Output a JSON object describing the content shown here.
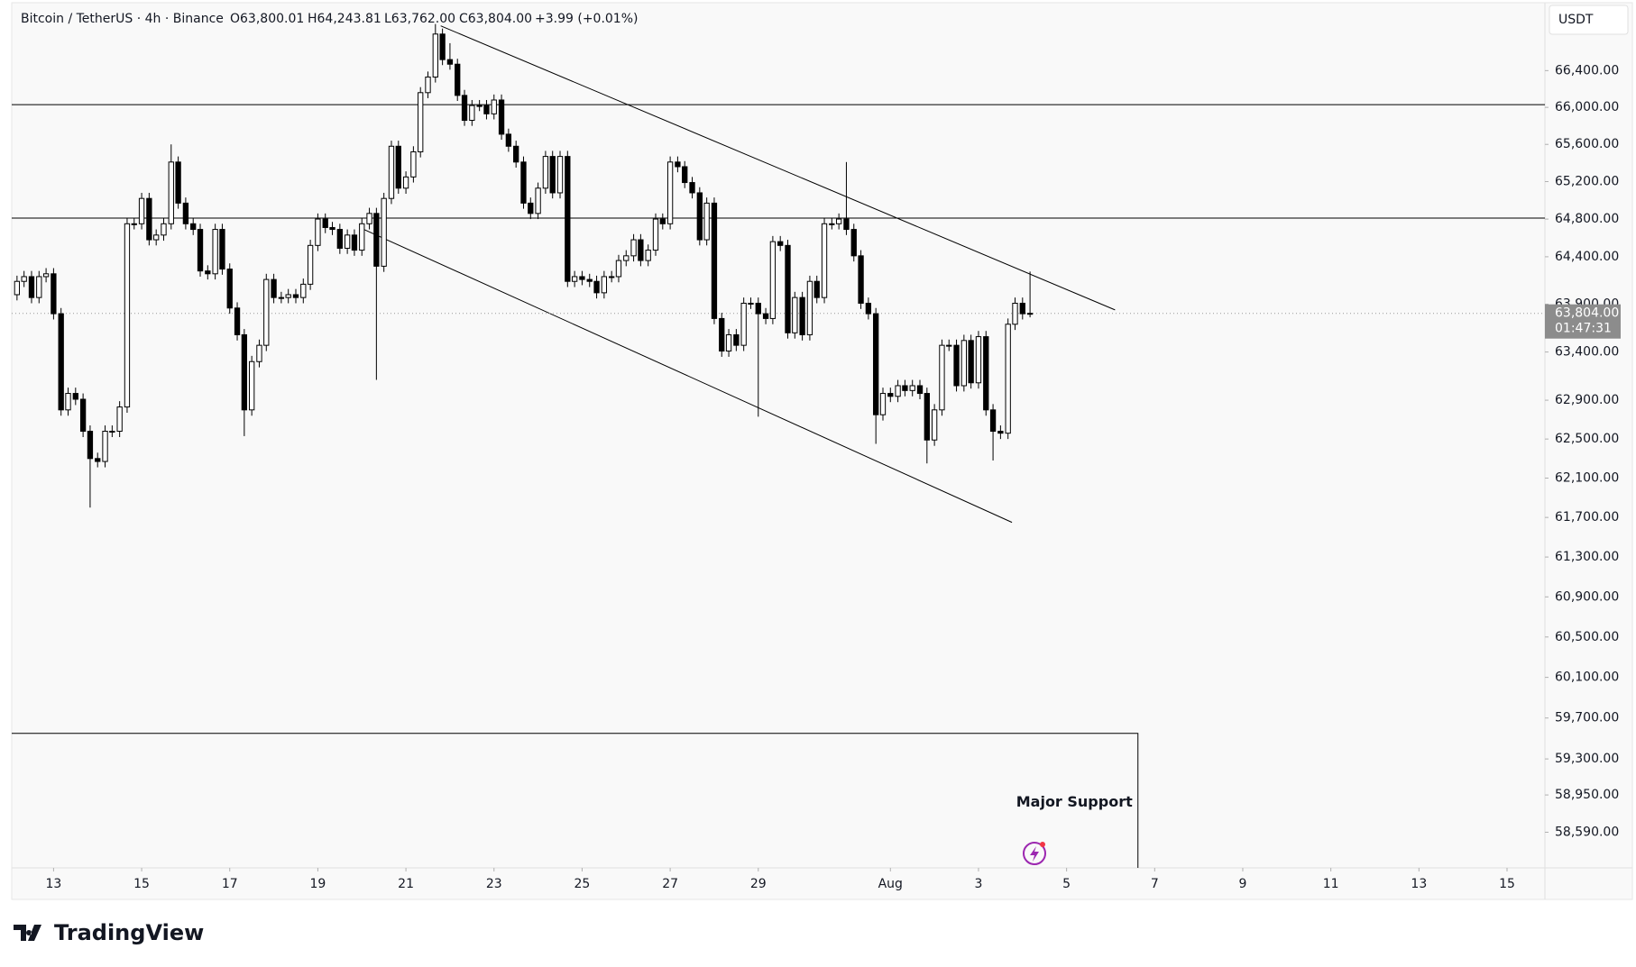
{
  "header": {
    "symbol": "Bitcoin / TetherUS · 4h · Binance",
    "ohlc_labels": [
      "O63,800.01",
      "H64,243.81",
      "L63,762.00",
      "C63,804.00"
    ],
    "change": "+3.99 (+0.01%)",
    "currency": "USDT",
    "last_price_label": "63,804.00",
    "countdown": "01:47:31",
    "brand": "TradingView"
  },
  "chart_data": {
    "type": "candlestick",
    "log_scale": true,
    "xlim": [
      12.05,
      46.86
    ],
    "xticks": [
      13,
      15,
      17,
      19,
      21,
      23,
      25,
      27,
      29,
      {
        "value": 32,
        "label": "Aug"
      },
      {
        "value": 34,
        "label": "3"
      },
      {
        "value": 36,
        "label": "5"
      },
      {
        "value": 38,
        "label": "7"
      },
      {
        "value": 40,
        "label": "9"
      },
      {
        "value": 42,
        "label": "11"
      },
      {
        "value": 44,
        "label": "13"
      },
      {
        "value": 46,
        "label": "15"
      }
    ],
    "ylim": [
      58248,
      67135
    ],
    "yticks": [
      {
        "value": 66400,
        "label": "66,400.00"
      },
      {
        "value": 66000,
        "label": "66,000.00"
      },
      {
        "value": 65600,
        "label": "65,600.00"
      },
      {
        "value": 65200,
        "label": "65,200.00"
      },
      {
        "value": 64800,
        "label": "64,800.00"
      },
      {
        "value": 64400,
        "label": "64,400.00"
      },
      {
        "value": 63900,
        "label": "63,900.00"
      },
      {
        "value": 63400,
        "label": "63,400.00"
      },
      {
        "value": 62900,
        "label": "62,900.00"
      },
      {
        "value": 62500,
        "label": "62,500.00"
      },
      {
        "value": 62100,
        "label": "62,100.00"
      },
      {
        "value": 61700,
        "label": "61,700.00"
      },
      {
        "value": 61300,
        "label": "61,300.00"
      },
      {
        "value": 60900,
        "label": "60,900.00"
      },
      {
        "value": 60500,
        "label": "60,500.00"
      },
      {
        "value": 60100,
        "label": "60,100.00"
      },
      {
        "value": 59700,
        "label": "59,700.00"
      },
      {
        "value": 59300,
        "label": "59,300.00"
      },
      {
        "value": 58950,
        "label": "58,950.00"
      },
      {
        "value": 58590,
        "label": "58,590.00"
      }
    ],
    "up_color": "#ffffff",
    "down_color": "#000000",
    "line_color": "#000000",
    "x": [
      12.17,
      12.33,
      12.5,
      12.67,
      12.83,
      13,
      13.17,
      13.33,
      13.5,
      13.67,
      13.83,
      14,
      14.17,
      14.33,
      14.5,
      14.67,
      14.83,
      15,
      15.17,
      15.33,
      15.5,
      15.67,
      15.83,
      16,
      16.17,
      16.33,
      16.5,
      16.67,
      16.83,
      17,
      17.17,
      17.33,
      17.5,
      17.67,
      17.83,
      18,
      18.17,
      18.33,
      18.5,
      18.67,
      18.83,
      19,
      19.17,
      19.33,
      19.5,
      19.67,
      19.83,
      20,
      20.17,
      20.33,
      20.5,
      20.67,
      20.83,
      21,
      21.17,
      21.33,
      21.5,
      21.67,
      21.83,
      22,
      22.17,
      22.33,
      22.5,
      22.67,
      22.83,
      23,
      23.17,
      23.33,
      23.5,
      23.67,
      23.83,
      24,
      24.17,
      24.33,
      24.5,
      24.67,
      24.83,
      25,
      25.17,
      25.33,
      25.5,
      25.67,
      25.83,
      26,
      26.17,
      26.33,
      26.5,
      26.67,
      26.83,
      27,
      27.17,
      27.33,
      27.5,
      27.67,
      27.83,
      28,
      28.17,
      28.33,
      28.5,
      28.67,
      28.83,
      29,
      29.17,
      29.33,
      29.5,
      29.67,
      29.83,
      30,
      30.17,
      30.33,
      30.5,
      30.67,
      30.83,
      31,
      31.17,
      31.33,
      31.5,
      31.67,
      31.83,
      32,
      32.17,
      32.33,
      32.5,
      32.67,
      32.83,
      33,
      33.17,
      33.33,
      33.5,
      33.67,
      33.83,
      34,
      34.17,
      34.33,
      34.5,
      34.67,
      34.83,
      35,
      35.17
    ],
    "open": [
      64000,
      64140,
      64190,
      63970,
      64190,
      64220,
      63800,
      62800,
      62970,
      62910,
      62580,
      62300,
      62270,
      62580,
      62580,
      62830,
      64750,
      64750,
      65020,
      64580,
      64630,
      64750,
      65410,
      64970,
      64750,
      64690,
      64250,
      64220,
      64690,
      64270,
      63860,
      63580,
      62800,
      63300,
      63470,
      64160,
      63970,
      63970,
      64000,
      63970,
      64110,
      64520,
      64800,
      64710,
      64690,
      64490,
      64630,
      64470,
      64750,
      64860,
      64300,
      65020,
      65580,
      65130,
      65250,
      65520,
      66160,
      66330,
      66800,
      66520,
      66470,
      66130,
      65860,
      66020,
      66020,
      65930,
      66080,
      65710,
      65580,
      65410,
      64970,
      64860,
      65130,
      65470,
      65080,
      65470,
      64140,
      64190,
      64160,
      64140,
      64020,
      64190,
      64190,
      64360,
      64410,
      64580,
      64360,
      64470,
      64800,
      64750,
      65410,
      65360,
      65190,
      65080,
      64580,
      64970,
      63750,
      63410,
      63580,
      63470,
      63910,
      63910,
      63800,
      63750,
      64560,
      64520,
      63600,
      63970,
      63580,
      64140,
      63970,
      64750,
      64750,
      64800,
      64690,
      64410,
      63910,
      63800,
      62750,
      62970,
      62940,
      63050,
      63000,
      63050,
      62970,
      62490,
      62800,
      63470,
      63470,
      63050,
      63520,
      63080,
      63560,
      62800,
      62580,
      62560,
      63690,
      63910,
      63800.01
    ],
    "high": [
      64200,
      64250,
      64250,
      64250,
      64280,
      64280,
      63860,
      63030,
      63030,
      62970,
      62640,
      62360,
      62640,
      62640,
      62890,
      64810,
      64810,
      65080,
      65080,
      64690,
      64810,
      65600,
      65470,
      65030,
      64810,
      64750,
      64310,
      64750,
      64750,
      64330,
      63920,
      63640,
      63360,
      63530,
      64220,
      64220,
      64030,
      64060,
      64060,
      64170,
      64580,
      64860,
      64860,
      64770,
      64750,
      64690,
      64690,
      64810,
      64920,
      64920,
      65080,
      65640,
      65640,
      65310,
      65580,
      66220,
      66390,
      66910,
      66860,
      66700,
      66530,
      66190,
      66080,
      66080,
      66080,
      66140,
      66140,
      65770,
      65640,
      65470,
      65030,
      65190,
      65530,
      65530,
      65530,
      65530,
      64250,
      64250,
      64220,
      64200,
      64250,
      64250,
      64420,
      64470,
      64640,
      64640,
      64530,
      64860,
      64860,
      65470,
      65470,
      65420,
      65250,
      65140,
      65030,
      65030,
      63810,
      63640,
      63640,
      63970,
      63970,
      63970,
      63860,
      64620,
      64620,
      64580,
      64030,
      64030,
      64200,
      64200,
      64810,
      64810,
      64860,
      65410,
      64750,
      64470,
      63970,
      63860,
      63030,
      63030,
      63110,
      63110,
      63110,
      63110,
      63030,
      62860,
      63530,
      63530,
      63530,
      63580,
      63580,
      63620,
      63620,
      62860,
      62640,
      63750,
      63970,
      63970,
      64243.81
    ],
    "low": [
      63940,
      64080,
      63910,
      63910,
      64130,
      63740,
      62740,
      62740,
      62850,
      62520,
      61800,
      62210,
      62210,
      62520,
      62520,
      62770,
      64690,
      64690,
      64520,
      64520,
      64570,
      64690,
      64910,
      64690,
      64630,
      64190,
      64160,
      64160,
      64210,
      63800,
      63520,
      62530,
      62740,
      63240,
      63410,
      63910,
      63910,
      63910,
      63910,
      63910,
      64050,
      64460,
      64650,
      64630,
      64430,
      64430,
      64410,
      64410,
      64690,
      63110,
      64240,
      64960,
      65070,
      65070,
      65190,
      65460,
      66100,
      66270,
      66460,
      66410,
      66070,
      65800,
      65800,
      65960,
      65870,
      65870,
      65650,
      65520,
      65350,
      64910,
      64800,
      64800,
      65070,
      65020,
      65020,
      64080,
      64080,
      64100,
      64080,
      63960,
      63960,
      64130,
      64130,
      64300,
      64350,
      64300,
      64300,
      64410,
      64690,
      64690,
      65300,
      65130,
      65020,
      64520,
      64520,
      63690,
      63350,
      63350,
      63410,
      63410,
      63850,
      62730,
      63690,
      63690,
      64460,
      63540,
      63540,
      63520,
      63520,
      63910,
      63910,
      64690,
      64690,
      64630,
      64350,
      63850,
      63740,
      62450,
      62690,
      62880,
      62880,
      62940,
      62940,
      62910,
      62250,
      62430,
      62740,
      63410,
      62990,
      62990,
      63020,
      63020,
      62740,
      62280,
      62500,
      62500,
      63630,
      63740,
      63762
    ],
    "close": [
      64140,
      64190,
      63970,
      64190,
      64220,
      63800,
      62800,
      62970,
      62910,
      62580,
      62300,
      62270,
      62580,
      62580,
      62830,
      64750,
      64750,
      65020,
      64580,
      64630,
      64750,
      65410,
      64970,
      64750,
      64690,
      64250,
      64220,
      64690,
      64270,
      63860,
      63580,
      62800,
      63300,
      63470,
      64160,
      63970,
      63970,
      64000,
      63970,
      64110,
      64520,
      64800,
      64710,
      64690,
      64490,
      64630,
      64470,
      64750,
      64860,
      64300,
      65020,
      65580,
      65130,
      65250,
      65520,
      66160,
      66330,
      66800,
      66520,
      66470,
      66130,
      65860,
      66020,
      66020,
      65930,
      66080,
      65710,
      65580,
      65410,
      64970,
      64860,
      65130,
      65470,
      65080,
      65470,
      64140,
      64190,
      64160,
      64140,
      64020,
      64190,
      64190,
      64360,
      64410,
      64580,
      64360,
      64470,
      64800,
      64750,
      65410,
      65360,
      65190,
      65080,
      64580,
      64970,
      63750,
      63410,
      63580,
      63470,
      63910,
      63910,
      63800,
      63750,
      64560,
      64520,
      63600,
      63970,
      63580,
      64140,
      63970,
      64750,
      64750,
      64800,
      64690,
      64410,
      63910,
      63800,
      62750,
      62970,
      62940,
      63050,
      63000,
      63050,
      62970,
      62490,
      62800,
      63470,
      63470,
      63050,
      63520,
      63080,
      63560,
      62800,
      62580,
      62560,
      63690,
      63910,
      63800,
      63804
    ],
    "hlines": [
      66030,
      64810
    ],
    "trendlines": [
      {
        "x": [
          21.79,
          37.1
        ],
        "y": [
          66890,
          63840
        ]
      },
      {
        "x": [
          19.95,
          34.76
        ],
        "y": [
          64710,
          61650
        ]
      }
    ],
    "support_zone": {
      "label": "Major Support",
      "x_end": 37.62,
      "y_top": 59550
    }
  }
}
